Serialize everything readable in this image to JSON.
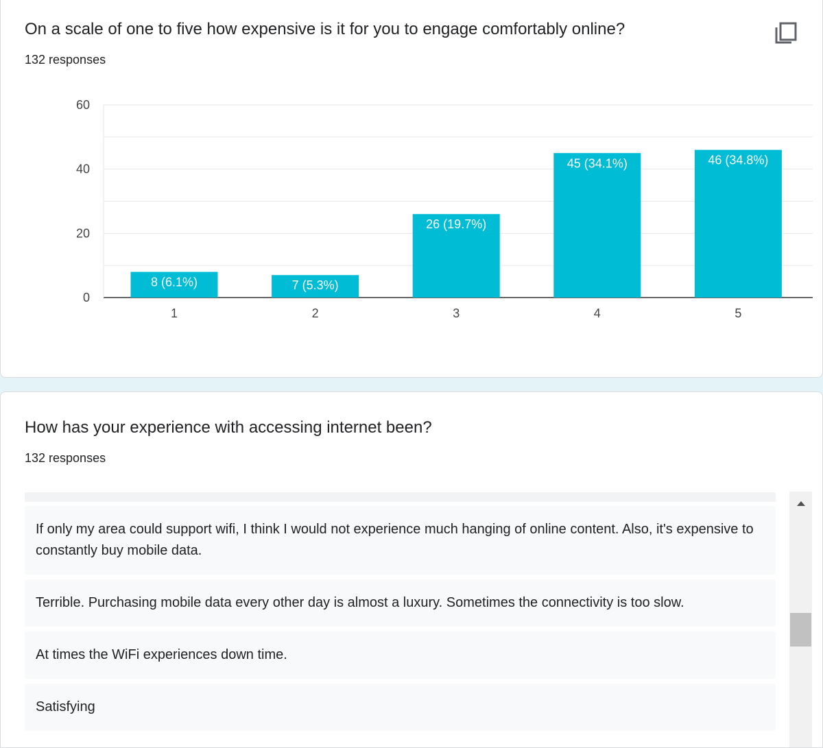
{
  "question1": {
    "title": "On a scale of one to five how expensive is it for you to engage comfortably online?",
    "responses": "132 responses"
  },
  "copy_icon": "copy-chart-icon",
  "chart_data": {
    "type": "bar",
    "categories": [
      "1",
      "2",
      "3",
      "4",
      "5"
    ],
    "values": [
      8,
      7,
      26,
      45,
      46
    ],
    "data_labels": [
      "8 (6.1%)",
      "7 (5.3%)",
      "26 (19.7%)",
      "45 (34.1%)",
      "46 (34.8%)"
    ],
    "y_ticks": [
      "0",
      "20",
      "40",
      "60"
    ],
    "ylim": [
      0,
      60
    ],
    "grid": true,
    "bar_color": "#00bcd4",
    "title": "",
    "xlabel": "",
    "ylabel": ""
  },
  "question2": {
    "title": "How has your experience with accessing internet been?",
    "responses": "132 responses",
    "items": [
      "If only my area could support wifi, I think I would not experience much hanging of online content. Also, it's expensive to constantly buy mobile data.",
      "Terrible. Purchasing mobile data every other day is almost a luxury. Sometimes the connectivity is too slow.",
      "At times the WiFi experiences down time.",
      "Satisfying"
    ]
  },
  "colors": {
    "accent": "#00bcd4",
    "page_bg": "#e3f3f7",
    "response_bg": "#f8f9fa"
  }
}
